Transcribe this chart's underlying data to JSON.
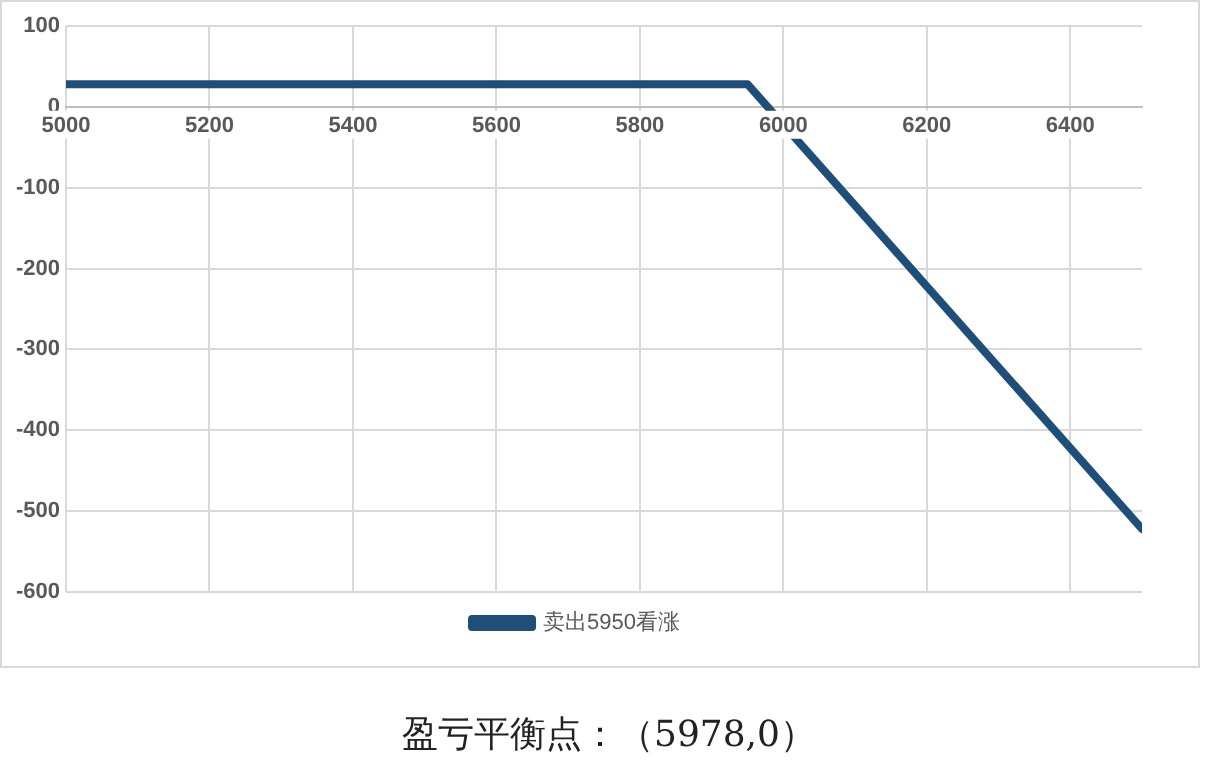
{
  "chart_data": {
    "type": "line",
    "x": [
      5000,
      5950,
      6500
    ],
    "series": [
      {
        "name": "卖出5950看涨",
        "color": "#1f4e79",
        "values": [
          28,
          28,
          -522
        ]
      }
    ],
    "xlim": [
      5000,
      6500
    ],
    "xticks": [
      5000,
      5200,
      5400,
      5600,
      5800,
      6000,
      6200,
      6400
    ],
    "ylim": [
      -600,
      100
    ],
    "yticks": [
      -600,
      -500,
      -400,
      -300,
      -200,
      -100,
      0,
      100
    ],
    "grid": true,
    "legend": "bottom",
    "marker": "none",
    "line_style": "solid",
    "annotations": [
      "盈亏平衡点：（5978,0）"
    ]
  }
}
